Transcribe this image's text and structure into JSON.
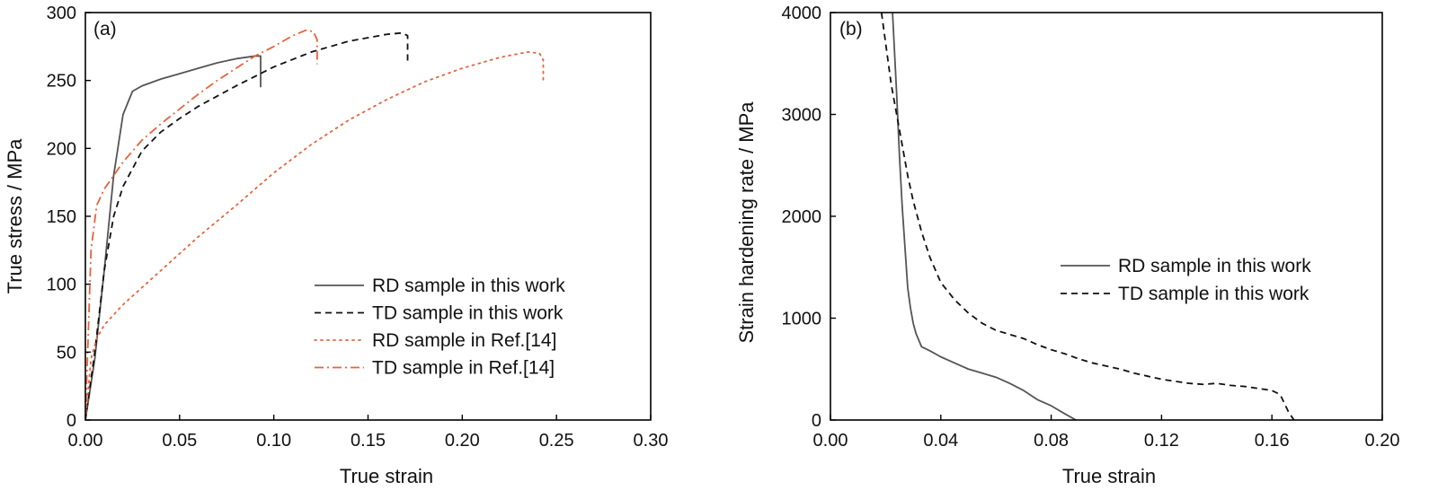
{
  "chart_data": [
    {
      "type": "line",
      "panel_label": "(a)",
      "title": "",
      "xlabel": "True strain",
      "ylabel": "True stress / MPa",
      "xlim": [
        0,
        0.3
      ],
      "ylim": [
        0,
        300
      ],
      "xticks": [
        "0.00",
        "0.05",
        "0.10",
        "0.15",
        "0.20",
        "0.25",
        "0.30"
      ],
      "yticks": [
        "0",
        "50",
        "100",
        "150",
        "200",
        "250",
        "300"
      ],
      "grid": false,
      "legend_position": "lower-right",
      "series": [
        {
          "name": "RD sample in this work",
          "color": "#555555",
          "style": "solid",
          "x": [
            0.0,
            0.005,
            0.01,
            0.015,
            0.02,
            0.025,
            0.03,
            0.04,
            0.05,
            0.06,
            0.07,
            0.08,
            0.09,
            0.093,
            0.093
          ],
          "y": [
            0,
            45,
            110,
            180,
            225,
            242,
            246,
            251,
            255,
            259,
            263,
            266,
            268,
            268,
            245
          ]
        },
        {
          "name": "TD sample in this work",
          "color": "#111111",
          "style": "dashed",
          "x": [
            0.0,
            0.005,
            0.01,
            0.015,
            0.02,
            0.03,
            0.04,
            0.05,
            0.06,
            0.08,
            0.1,
            0.12,
            0.14,
            0.16,
            0.168,
            0.171,
            0.171
          ],
          "y": [
            0,
            50,
            110,
            150,
            172,
            198,
            212,
            222,
            231,
            246,
            260,
            271,
            279,
            284,
            285,
            283,
            264
          ]
        },
        {
          "name": "RD sample in Ref.[14]",
          "color": "#E8623A",
          "style": "dotted",
          "x": [
            0.0,
            0.003,
            0.006,
            0.01,
            0.02,
            0.04,
            0.06,
            0.08,
            0.1,
            0.12,
            0.14,
            0.16,
            0.18,
            0.2,
            0.22,
            0.235,
            0.241,
            0.243,
            0.243
          ],
          "y": [
            0,
            45,
            60,
            70,
            85,
            110,
            135,
            158,
            182,
            203,
            221,
            236,
            249,
            259,
            267,
            271,
            270,
            265,
            250
          ]
        },
        {
          "name": "TD sample in Ref.[14]",
          "color": "#E8623A",
          "style": "dashdot",
          "x": [
            0.0,
            0.003,
            0.006,
            0.01,
            0.02,
            0.03,
            0.04,
            0.05,
            0.06,
            0.07,
            0.08,
            0.09,
            0.1,
            0.11,
            0.117,
            0.121,
            0.123,
            0.123
          ],
          "y": [
            0,
            125,
            158,
            170,
            190,
            206,
            218,
            229,
            240,
            250,
            259,
            268,
            275,
            283,
            287,
            286,
            280,
            262
          ]
        }
      ]
    },
    {
      "type": "line",
      "panel_label": "(b)",
      "title": "",
      "xlabel": "True strain",
      "ylabel": "Strain hardening rate / MPa",
      "xlim": [
        0,
        0.2
      ],
      "ylim": [
        0,
        4000
      ],
      "xticks": [
        "0.00",
        "0.04",
        "0.08",
        "0.12",
        "0.16",
        "0.20"
      ],
      "yticks": [
        "0",
        "1000",
        "2000",
        "3000",
        "4000"
      ],
      "grid": false,
      "legend_position": "center-right",
      "series": [
        {
          "name": "RD sample in this work",
          "color": "#555555",
          "style": "solid",
          "x": [
            0.0225,
            0.024,
            0.025,
            0.026,
            0.027,
            0.028,
            0.029,
            0.03,
            0.031,
            0.033,
            0.036,
            0.04,
            0.045,
            0.05,
            0.055,
            0.06,
            0.065,
            0.07,
            0.075,
            0.08,
            0.085,
            0.089
          ],
          "y": [
            4000,
            3200,
            2600,
            2100,
            1700,
            1300,
            1100,
            950,
            850,
            720,
            680,
            620,
            560,
            500,
            460,
            420,
            360,
            290,
            200,
            140,
            60,
            0
          ]
        },
        {
          "name": "TD sample in this work",
          "color": "#111111",
          "style": "dashed",
          "x": [
            0.0185,
            0.02,
            0.022,
            0.024,
            0.026,
            0.028,
            0.03,
            0.033,
            0.036,
            0.04,
            0.045,
            0.05,
            0.055,
            0.06,
            0.065,
            0.07,
            0.075,
            0.08,
            0.085,
            0.09,
            0.095,
            0.1,
            0.105,
            0.11,
            0.115,
            0.12,
            0.125,
            0.13,
            0.135,
            0.14,
            0.145,
            0.15,
            0.155,
            0.16,
            0.163,
            0.166,
            0.168
          ],
          "y": [
            4000,
            3700,
            3300,
            3000,
            2700,
            2400,
            2150,
            1850,
            1600,
            1350,
            1180,
            1050,
            950,
            880,
            840,
            800,
            740,
            690,
            650,
            600,
            560,
            530,
            500,
            460,
            430,
            400,
            380,
            360,
            350,
            360,
            340,
            330,
            310,
            290,
            250,
            80,
            0
          ]
        }
      ]
    }
  ]
}
